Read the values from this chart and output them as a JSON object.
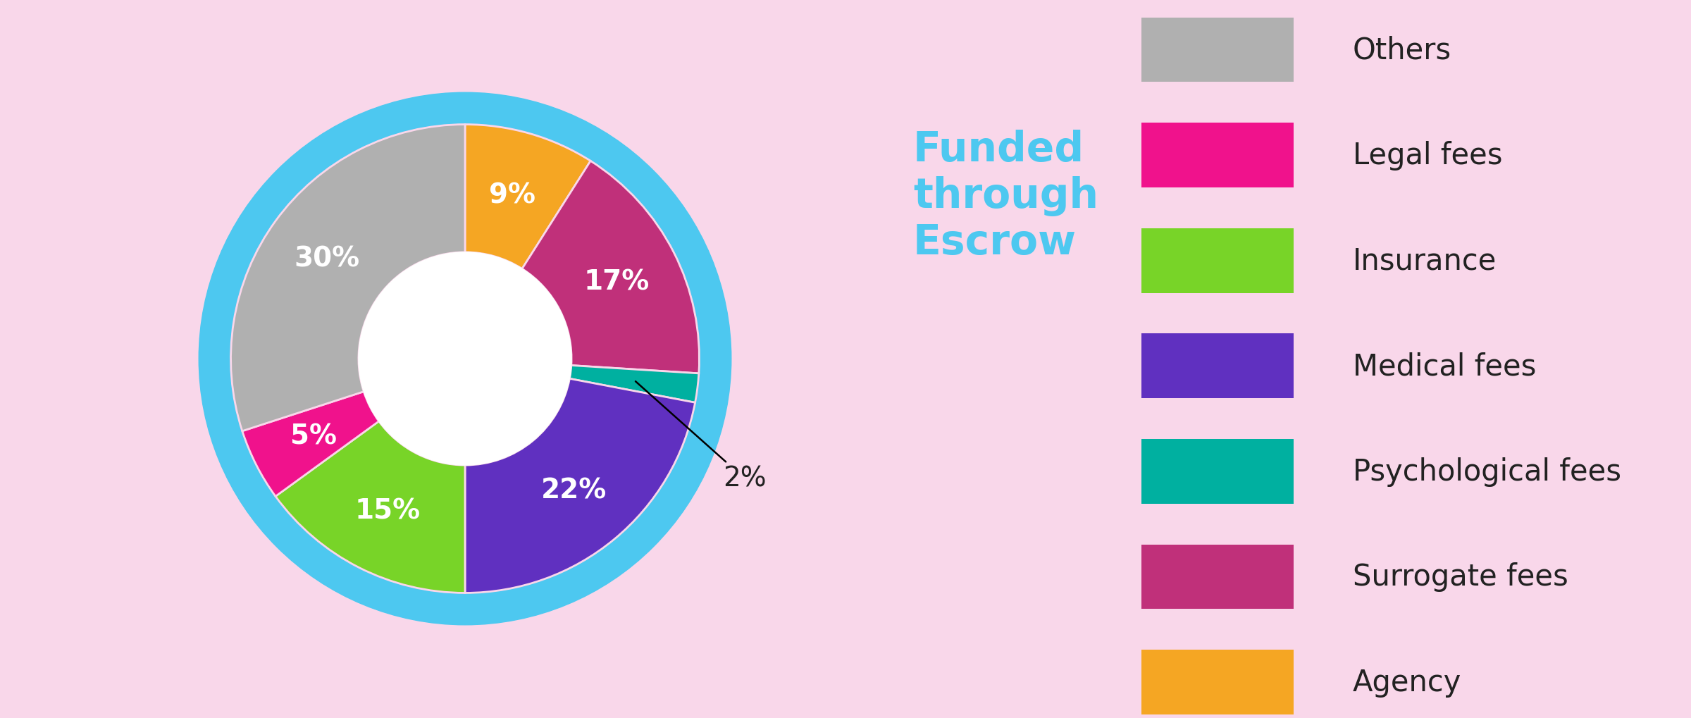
{
  "background_color": "#f9d7ea",
  "inner_ordered": [
    {
      "label": "Agency",
      "value": 9,
      "color": "#f5a623",
      "pct": "9%"
    },
    {
      "label": "Surrogate fees",
      "value": 17,
      "color": "#c0307a",
      "pct": "17%"
    },
    {
      "label": "Psychological fees",
      "value": 2,
      "color": "#00b0a0",
      "pct": "2%"
    },
    {
      "label": "Medical fees",
      "value": 22,
      "color": "#6030c0",
      "pct": "22%"
    },
    {
      "label": "Insurance",
      "value": 15,
      "color": "#78d428",
      "pct": "15%"
    },
    {
      "label": "Legal fees",
      "value": 5,
      "color": "#f0128c",
      "pct": "5%"
    },
    {
      "label": "Others",
      "value": 30,
      "color": "#b0b0b0",
      "pct": "30%"
    }
  ],
  "escrow_color": "#4dc8f0",
  "legend_order": [
    "Others",
    "Legal fees",
    "Insurance",
    "Medical fees",
    "Psychological fees",
    "Surrogate fees",
    "Agency"
  ],
  "legend_colors": {
    "Others": "#b0b0b0",
    "Legal fees": "#f0128c",
    "Insurance": "#78d428",
    "Medical fees": "#6030c0",
    "Psychological fees": "#00b0a0",
    "Surrogate fees": "#c0307a",
    "Agency": "#f5a623"
  },
  "title": "Funded\nthrough\nEscrow",
  "title_color": "#4dc8f0",
  "figsize": [
    24.0,
    10.2
  ],
  "dpi": 100
}
